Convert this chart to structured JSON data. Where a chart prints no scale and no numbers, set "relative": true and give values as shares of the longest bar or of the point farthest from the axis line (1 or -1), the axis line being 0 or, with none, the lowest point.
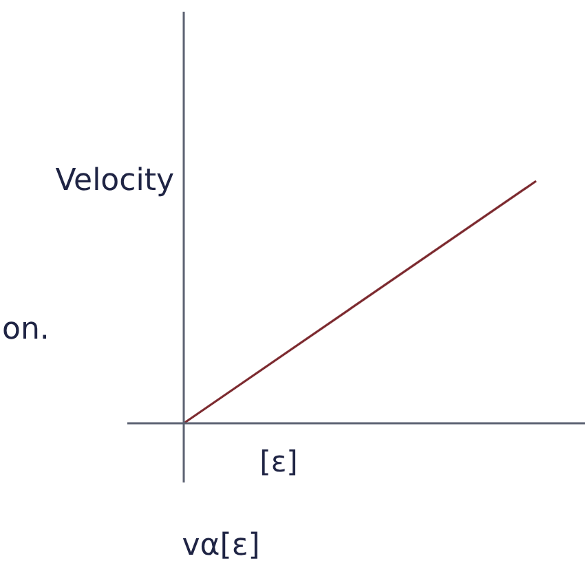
{
  "chart_data": {
    "type": "line",
    "relative": true,
    "ylabel": "Velocity",
    "xlabel": "[ε]",
    "annotations": [
      "on.",
      "vα[ε]"
    ],
    "categories": [
      null,
      null
    ],
    "series": [
      {
        "color": "#7d2b30",
        "values": [
          0,
          1
        ]
      }
    ]
  }
}
